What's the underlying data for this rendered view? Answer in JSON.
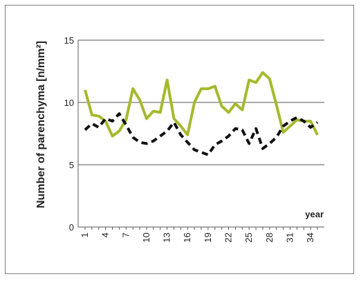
{
  "chart_data": {
    "type": "line",
    "title": "",
    "xlabel": "year",
    "ylabel": "Number of parenchyma [n/mm²]",
    "ylim": [
      0,
      15
    ],
    "yticks": [
      0,
      5,
      10,
      15
    ],
    "x": [
      1,
      2,
      3,
      4,
      5,
      6,
      7,
      8,
      9,
      10,
      11,
      12,
      13,
      14,
      15,
      16,
      17,
      18,
      19,
      20,
      21,
      22,
      23,
      24,
      25,
      26,
      27,
      28,
      29,
      30,
      31,
      32,
      33,
      34,
      35
    ],
    "xtick_labels": [
      "1",
      "4",
      "7",
      "10",
      "13",
      "16",
      "19",
      "22",
      "25",
      "28",
      "31",
      "34"
    ],
    "xtick_positions": [
      1,
      4,
      7,
      10,
      13,
      16,
      19,
      22,
      25,
      28,
      31,
      34
    ],
    "grid": "horizontal",
    "series": [
      {
        "color": "#a6b92d",
        "style": "solid",
        "values": [
          11.0,
          9.0,
          8.9,
          8.5,
          7.3,
          7.7,
          8.6,
          11.1,
          10.2,
          8.7,
          9.3,
          9.2,
          11.8,
          8.7,
          8.1,
          7.4,
          10.0,
          11.1,
          11.1,
          11.3,
          9.7,
          9.2,
          9.9,
          9.4,
          11.8,
          11.6,
          12.4,
          11.9,
          9.8,
          7.6,
          8.1,
          8.6,
          8.5,
          8.5,
          7.4
        ]
      },
      {
        "color": "#111111",
        "style": "dashed",
        "values": [
          7.8,
          8.3,
          8.0,
          8.7,
          8.5,
          9.1,
          8.2,
          7.2,
          6.8,
          6.7,
          6.9,
          7.3,
          7.7,
          8.4,
          7.4,
          6.8,
          6.2,
          6.0,
          5.8,
          6.6,
          6.9,
          7.3,
          7.9,
          7.8,
          6.7,
          7.9,
          6.3,
          6.7,
          7.2,
          8.1,
          8.5,
          8.8,
          8.5,
          8.0,
          8.4
        ]
      }
    ]
  }
}
